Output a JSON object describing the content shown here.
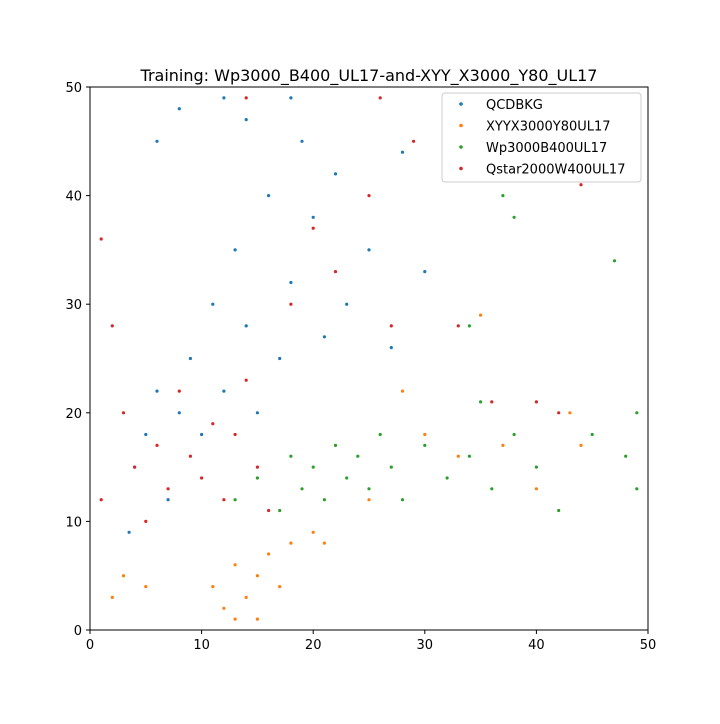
{
  "chart_data": {
    "type": "scatter",
    "title": "Training: Wp3000_B400_UL17-and-XYY_X3000_Y80_UL17",
    "xlabel": "",
    "ylabel": "",
    "xlim": [
      0,
      50
    ],
    "ylim": [
      0,
      50
    ],
    "x_ticks": [
      "0",
      "10",
      "20",
      "30",
      "40",
      "50"
    ],
    "y_ticks": [
      "0",
      "10",
      "20",
      "30",
      "40",
      "50"
    ],
    "grid": false,
    "legend_position": "top-right",
    "series": [
      {
        "name": "QCDBKG",
        "color": "#1f77b4",
        "points": [
          [
            3.5,
            9
          ],
          [
            4,
            15
          ],
          [
            5,
            18
          ],
          [
            6,
            22
          ],
          [
            7,
            12
          ],
          [
            8,
            20
          ],
          [
            9,
            25
          ],
          [
            10,
            18
          ],
          [
            11,
            30
          ],
          [
            12,
            22
          ],
          [
            13,
            35
          ],
          [
            14,
            28
          ],
          [
            15,
            20
          ],
          [
            16,
            40
          ],
          [
            17,
            25
          ],
          [
            18,
            32
          ],
          [
            19,
            45
          ],
          [
            20,
            38
          ],
          [
            21,
            27
          ],
          [
            22,
            42
          ],
          [
            23,
            30
          ],
          [
            25,
            35
          ],
          [
            27,
            26
          ],
          [
            28,
            44
          ],
          [
            30,
            33
          ],
          [
            8,
            48
          ],
          [
            12,
            49
          ],
          [
            6,
            45
          ],
          [
            14,
            47
          ],
          [
            18,
            49
          ]
        ]
      },
      {
        "name": "XYYX3000Y80UL17",
        "color": "#ff7f0e",
        "points": [
          [
            11,
            4
          ],
          [
            12,
            2
          ],
          [
            13,
            6
          ],
          [
            14,
            3
          ],
          [
            15,
            5
          ],
          [
            16,
            7
          ],
          [
            17,
            4
          ],
          [
            18,
            8
          ],
          [
            15,
            1
          ],
          [
            13,
            1
          ],
          [
            20,
            9
          ],
          [
            21,
            8
          ],
          [
            25,
            12
          ],
          [
            28,
            22
          ],
          [
            30,
            18
          ],
          [
            33,
            16
          ],
          [
            35,
            29
          ],
          [
            37,
            17
          ],
          [
            40,
            13
          ],
          [
            43,
            20
          ],
          [
            44,
            17
          ],
          [
            3,
            5
          ],
          [
            5,
            4
          ],
          [
            2,
            3
          ]
        ]
      },
      {
        "name": "Wp3000B400UL17",
        "color": "#2ca02c",
        "points": [
          [
            13,
            12
          ],
          [
            15,
            14
          ],
          [
            17,
            11
          ],
          [
            18,
            16
          ],
          [
            19,
            13
          ],
          [
            20,
            15
          ],
          [
            21,
            12
          ],
          [
            22,
            17
          ],
          [
            23,
            14
          ],
          [
            24,
            16
          ],
          [
            25,
            13
          ],
          [
            26,
            18
          ],
          [
            27,
            15
          ],
          [
            28,
            12
          ],
          [
            30,
            17
          ],
          [
            32,
            14
          ],
          [
            34,
            16
          ],
          [
            35,
            21
          ],
          [
            36,
            13
          ],
          [
            38,
            18
          ],
          [
            40,
            15
          ],
          [
            42,
            11
          ],
          [
            45,
            18
          ],
          [
            48,
            16
          ],
          [
            49,
            20
          ],
          [
            49,
            13
          ],
          [
            47,
            34
          ],
          [
            38,
            38
          ],
          [
            37,
            40
          ],
          [
            34,
            28
          ]
        ]
      },
      {
        "name": "Qstar2000W400UL17",
        "color": "#d62728",
        "points": [
          [
            1,
            12
          ],
          [
            1,
            36
          ],
          [
            2,
            28
          ],
          [
            3,
            20
          ],
          [
            4,
            15
          ],
          [
            5,
            10
          ],
          [
            6,
            17
          ],
          [
            7,
            13
          ],
          [
            8,
            22
          ],
          [
            9,
            16
          ],
          [
            10,
            14
          ],
          [
            11,
            19
          ],
          [
            12,
            12
          ],
          [
            13,
            18
          ],
          [
            14,
            23
          ],
          [
            15,
            15
          ],
          [
            16,
            11
          ],
          [
            18,
            30
          ],
          [
            20,
            37
          ],
          [
            22,
            33
          ],
          [
            25,
            40
          ],
          [
            27,
            28
          ],
          [
            29,
            45
          ],
          [
            33,
            28
          ],
          [
            36,
            21
          ],
          [
            40,
            21
          ],
          [
            42,
            20
          ],
          [
            44,
            41
          ],
          [
            14,
            49
          ],
          [
            26,
            49
          ]
        ]
      }
    ]
  }
}
